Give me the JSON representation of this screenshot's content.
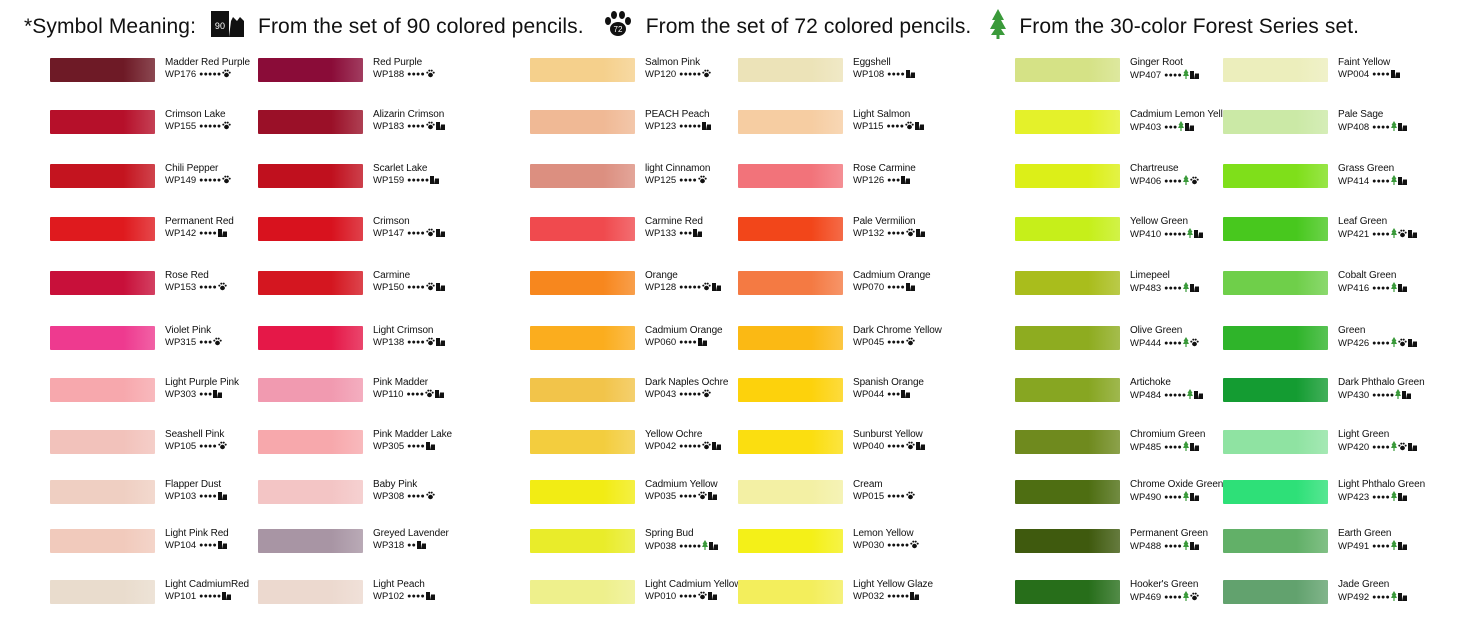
{
  "legend": {
    "title": "*Symbol Meaning:",
    "cat_badge": "90",
    "paw_badge": "72",
    "set90": "From the set of 90 colored pencils.",
    "set72": "From the set of 72 colored pencils.",
    "forest": "From the 30-color Forest Series set."
  },
  "colors": {
    "black": "#111111",
    "tree_green": "#3a9a3a"
  },
  "columns": [
    [
      {
        "name": "Madder Red Purple",
        "code": "WP176",
        "dots": "●●●●●",
        "marks": [
          "paw"
        ],
        "color": "#6e1a26"
      },
      {
        "name": "Crimson Lake",
        "code": "WP155",
        "dots": "●●●●●",
        "marks": [
          "paw"
        ],
        "color": "#b6102a"
      },
      {
        "name": "Chili Pepper",
        "code": "WP149",
        "dots": "●●●●●",
        "marks": [
          "paw"
        ],
        "color": "#c4141f"
      },
      {
        "name": "Permanent Red",
        "code": "WP142",
        "dots": "●●●●",
        "marks": [
          "cat"
        ],
        "color": "#df1a1e"
      },
      {
        "name": "Rose Red",
        "code": "WP153",
        "dots": "●●●●",
        "marks": [
          "paw"
        ],
        "color": "#c8103a"
      },
      {
        "name": "Violet Pink",
        "code": "WP315",
        "dots": "●●●",
        "marks": [
          "paw"
        ],
        "color": "#ee3a8f"
      },
      {
        "name": "Light Purple Pink",
        "code": "WP303",
        "dots": "●●●",
        "marks": [
          "cat"
        ],
        "color": "#f7a8ad"
      },
      {
        "name": "Seashell Pink",
        "code": "WP105",
        "dots": "●●●●",
        "marks": [
          "paw"
        ],
        "color": "#f2c2bb"
      },
      {
        "name": "Flapper Dust",
        "code": "WP103",
        "dots": "●●●●",
        "marks": [
          "cat"
        ],
        "color": "#efcfc2"
      },
      {
        "name": "Light Pink Red",
        "code": "WP104",
        "dots": "●●●●",
        "marks": [
          "cat"
        ],
        "color": "#f1cabc"
      },
      {
        "name": "Light CadmiumRed",
        "code": "WP101",
        "dots": "●●●●●",
        "marks": [
          "cat"
        ],
        "color": "#e9dccd"
      }
    ],
    [
      {
        "name": "Red Purple",
        "code": "WP188",
        "dots": "●●●●",
        "marks": [
          "paw"
        ],
        "color": "#8a0c38"
      },
      {
        "name": "Alizarin Crimson",
        "code": "WP183",
        "dots": "●●●●",
        "marks": [
          "paw",
          "cat"
        ],
        "color": "#9a1028"
      },
      {
        "name": "Scarlet  Lake",
        "code": "WP159",
        "dots": "●●●●●",
        "marks": [
          "cat"
        ],
        "color": "#c0101e"
      },
      {
        "name": "Crimson",
        "code": "WP147",
        "dots": "●●●●",
        "marks": [
          "paw",
          "cat"
        ],
        "color": "#d8121e"
      },
      {
        "name": "Carmine",
        "code": "WP150",
        "dots": "●●●●",
        "marks": [
          "paw",
          "cat"
        ],
        "color": "#d41620"
      },
      {
        "name": "Light Crimson",
        "code": "WP138",
        "dots": "●●●●",
        "marks": [
          "paw",
          "cat"
        ],
        "color": "#e51848"
      },
      {
        "name": "Pink Madder",
        "code": "WP110",
        "dots": "●●●●",
        "marks": [
          "paw",
          "cat"
        ],
        "color": "#f19ab0"
      },
      {
        "name": "Pink Madder Lake",
        "code": "WP305",
        "dots": "●●●●",
        "marks": [
          "cat"
        ],
        "color": "#f7a8ac"
      },
      {
        "name": "Baby Pink",
        "code": "WP308",
        "dots": "●●●●",
        "marks": [
          "paw"
        ],
        "color": "#f3c5c5"
      },
      {
        "name": "Greyed Lavender",
        "code": "WP318",
        "dots": "●●",
        "marks": [
          "cat"
        ],
        "color": "#a895a4"
      },
      {
        "name": "Light Peach",
        "code": "WP102",
        "dots": "●●●●",
        "marks": [
          "cat"
        ],
        "color": "#ecd9cf"
      }
    ],
    [
      {
        "name": "Salmon Pink",
        "code": "WP120",
        "dots": "●●●●●",
        "marks": [
          "paw"
        ],
        "color": "#f5d08c"
      },
      {
        "name": "PEACH Peach",
        "code": "WP123",
        "dots": "●●●●●",
        "marks": [
          "cat"
        ],
        "color": "#f0b995"
      },
      {
        "name": "light Cinnamon",
        "code": "WP125",
        "dots": "●●●●",
        "marks": [
          "paw"
        ],
        "color": "#dc8f80"
      },
      {
        "name": "Carmine Red",
        "code": "WP133",
        "dots": "●●●",
        "marks": [
          "cat"
        ],
        "color": "#f04a4e"
      },
      {
        "name": "Orange",
        "code": "WP128",
        "dots": "●●●●●",
        "marks": [
          "paw",
          "cat"
        ],
        "color": "#f7871e"
      },
      {
        "name": "Cadmium Orange",
        "code": "WP060",
        "dots": "●●●●",
        "marks": [
          "cat"
        ],
        "color": "#fbad1e"
      },
      {
        "name": "Dark Naples Ochre",
        "code": "WP043",
        "dots": "●●●●●",
        "marks": [
          "paw"
        ],
        "color": "#f2c44a"
      },
      {
        "name": "Yellow Ochre",
        "code": "WP042",
        "dots": "●●●●●",
        "marks": [
          "paw",
          "cat"
        ],
        "color": "#f3cd3e"
      },
      {
        "name": "Cadmium Yellow",
        "code": "WP035",
        "dots": "●●●●",
        "marks": [
          "paw",
          "cat"
        ],
        "color": "#f2ec14"
      },
      {
        "name": "Spring Bud",
        "code": "WP038",
        "dots": "●●●●●",
        "marks": [
          "tree",
          "cat"
        ],
        "color": "#e9ec2a"
      },
      {
        "name": "Light Cadmium Yellow",
        "code": "WP010",
        "dots": "●●●●",
        "marks": [
          "paw",
          "cat"
        ],
        "color": "#eef08c"
      }
    ],
    [
      {
        "name": "Eggshell",
        "code": "WP108",
        "dots": "●●●●",
        "marks": [
          "cat"
        ],
        "color": "#ece3b8"
      },
      {
        "name": "Light Salmon",
        "code": "WP115",
        "dots": "●●●●",
        "marks": [
          "paw",
          "cat"
        ],
        "color": "#f6cda2"
      },
      {
        "name": "Rose Carmine",
        "code": "WP126",
        "dots": "●●●",
        "marks": [
          "cat"
        ],
        "color": "#f2737a"
      },
      {
        "name": "Pale Vermilion",
        "code": "WP132",
        "dots": "●●●●",
        "marks": [
          "paw",
          "cat"
        ],
        "color": "#f2461a"
      },
      {
        "name": "Cadmium Orange",
        "code": "WP070",
        "dots": "●●●●",
        "marks": [
          "cat"
        ],
        "color": "#f47a43"
      },
      {
        "name": "Dark Chrome Yellow",
        "code": "WP045",
        "dots": "●●●●",
        "marks": [
          "paw"
        ],
        "color": "#fbb914"
      },
      {
        "name": "Spanish Orange",
        "code": "WP044",
        "dots": "●●●",
        "marks": [
          "cat"
        ],
        "color": "#fdd20c"
      },
      {
        "name": "Sunburst Yellow",
        "code": "WP040",
        "dots": "●●●●",
        "marks": [
          "paw",
          "cat"
        ],
        "color": "#fbde10"
      },
      {
        "name": "Cream",
        "code": "WP015",
        "dots": "●●●●",
        "marks": [
          "paw"
        ],
        "color": "#f3f0a4"
      },
      {
        "name": "Lemon Yellow",
        "code": "WP030",
        "dots": "●●●●●",
        "marks": [
          "paw"
        ],
        "color": "#f4f018"
      },
      {
        "name": "Light Yellow Glaze",
        "code": "WP032",
        "dots": "●●●●●",
        "marks": [
          "cat"
        ],
        "color": "#f3ee5c"
      }
    ],
    [
      {
        "name": "Ginger Root",
        "code": "WP407",
        "dots": "●●●●",
        "marks": [
          "tree",
          "cat"
        ],
        "color": "#d5e286"
      },
      {
        "name": "Cadmium Lemon Yellow",
        "code": "WP403",
        "dots": "●●●",
        "marks": [
          "tree",
          "cat"
        ],
        "color": "#e4f12a"
      },
      {
        "name": "Chartreuse",
        "code": "WP406",
        "dots": "●●●●",
        "marks": [
          "tree",
          "paw"
        ],
        "color": "#dcef18"
      },
      {
        "name": "Yellow Green",
        "code": "WP410",
        "dots": "●●●●●",
        "marks": [
          "tree",
          "cat"
        ],
        "color": "#c6ef1a"
      },
      {
        "name": "Limepeel",
        "code": "WP483",
        "dots": "●●●●",
        "marks": [
          "tree",
          "cat"
        ],
        "color": "#a9bd1c"
      },
      {
        "name": "Olive Green",
        "code": "WP444",
        "dots": "●●●●",
        "marks": [
          "tree",
          "paw"
        ],
        "color": "#8eac20"
      },
      {
        "name": "Artichoke",
        "code": "WP484",
        "dots": "●●●●●",
        "marks": [
          "tree",
          "cat"
        ],
        "color": "#87a622"
      },
      {
        "name": "Chromium Green",
        "code": "WP485",
        "dots": "●●●●",
        "marks": [
          "tree",
          "cat"
        ],
        "color": "#6f8a1e"
      },
      {
        "name": "Chrome Oxide Green",
        "code": "WP490",
        "dots": "●●●●",
        "marks": [
          "tree",
          "cat"
        ],
        "color": "#4e6e12"
      },
      {
        "name": "Permanent Green",
        "code": "WP488",
        "dots": "●●●●",
        "marks": [
          "tree",
          "cat"
        ],
        "color": "#3f5a0e"
      },
      {
        "name": "Hooker's Green",
        "code": "WP469",
        "dots": "●●●●",
        "marks": [
          "tree",
          "paw"
        ],
        "color": "#276e1a"
      }
    ],
    [
      {
        "name": "Faint Yellow",
        "code": "WP004",
        "dots": "●●●●",
        "marks": [
          "cat"
        ],
        "color": "#eceebc"
      },
      {
        "name": "Pale Sage",
        "code": "WP408",
        "dots": "●●●●",
        "marks": [
          "tree",
          "cat"
        ],
        "color": "#cbe9a6"
      },
      {
        "name": "Grass Green",
        "code": "WP414",
        "dots": "●●●●",
        "marks": [
          "tree",
          "cat"
        ],
        "color": "#7fdf1a"
      },
      {
        "name": "Leaf Green",
        "code": "WP421",
        "dots": "●●●●",
        "marks": [
          "tree",
          "paw",
          "cat"
        ],
        "color": "#48c81e"
      },
      {
        "name": "Cobalt Green",
        "code": "WP416",
        "dots": "●●●●",
        "marks": [
          "tree",
          "cat"
        ],
        "color": "#6fcf4a"
      },
      {
        "name": "Green",
        "code": "WP426",
        "dots": "●●●●",
        "marks": [
          "tree",
          "paw",
          "cat"
        ],
        "color": "#2fb42a"
      },
      {
        "name": "Dark Phthalo Green",
        "code": "WP430",
        "dots": "●●●●●",
        "marks": [
          "tree",
          "cat"
        ],
        "color": "#149c32"
      },
      {
        "name": "Light Green",
        "code": "WP420",
        "dots": "●●●●",
        "marks": [
          "tree",
          "paw",
          "cat"
        ],
        "color": "#8fe3a2"
      },
      {
        "name": "Light Phthalo Green",
        "code": "WP423",
        "dots": "●●●●",
        "marks": [
          "tree",
          "cat"
        ],
        "color": "#2ee078"
      },
      {
        "name": "Earth Green",
        "code": "WP491",
        "dots": "●●●●",
        "marks": [
          "tree",
          "cat"
        ],
        "color": "#62b068"
      },
      {
        "name": "Jade Green",
        "code": "WP492",
        "dots": "●●●●",
        "marks": [
          "tree",
          "cat"
        ],
        "color": "#62a26e"
      }
    ]
  ]
}
